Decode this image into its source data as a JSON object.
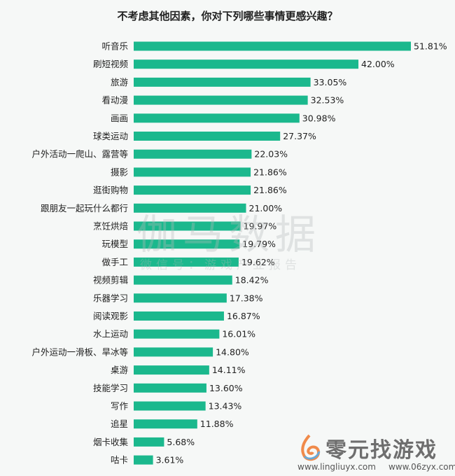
{
  "chart_data": {
    "type": "bar",
    "orientation": "horizontal",
    "title": "不考虑其他因素，你对下列哪些事情更感兴趣？",
    "categories": [
      "听音乐",
      "刷短视频",
      "旅游",
      "看动漫",
      "画画",
      "球类运动",
      "户外活动一爬山、露营等",
      "摄影",
      "逛街购物",
      "跟朋友一起玩什么都行",
      "烹饪烘焙",
      "玩模型",
      "做手工",
      "视频剪辑",
      "乐器学习",
      "阅读观影",
      "水上运动",
      "户外运动一滑板、旱冰等",
      "桌游",
      "技能学习",
      "写作",
      "追星",
      "烟卡收集",
      "咕卡"
    ],
    "values": [
      51.81,
      42.0,
      33.05,
      32.53,
      30.98,
      27.37,
      22.03,
      21.86,
      21.86,
      21.0,
      19.97,
      19.79,
      19.62,
      18.42,
      17.38,
      16.87,
      16.01,
      14.8,
      14.11,
      13.6,
      13.43,
      11.88,
      5.68,
      3.61
    ],
    "value_suffix": "%",
    "bar_color": "#1bb88d",
    "grid": false
  },
  "watermark": {
    "main": "伽马数据",
    "sub": "微信号：游戏产业报告"
  },
  "logo": {
    "name": "零元找游戏",
    "url1": "www.lingliuyx.com",
    "url2": "www.06zyx.com"
  }
}
